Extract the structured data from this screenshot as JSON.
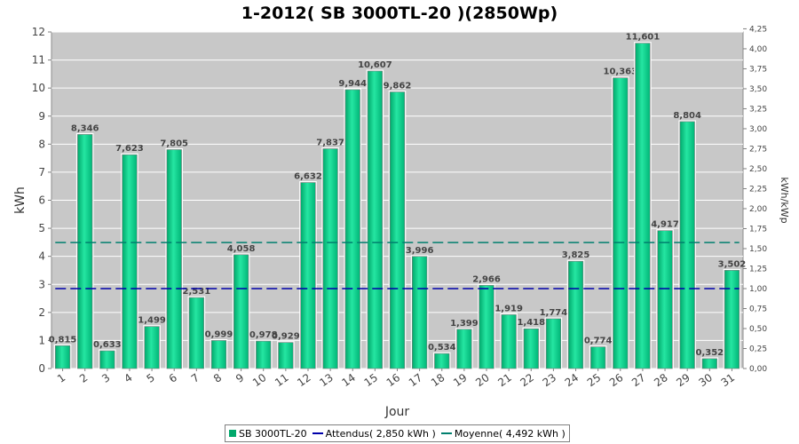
{
  "chart_data": {
    "type": "bar",
    "title": "1-2012( SB 3000TL-20 )(2850Wp)",
    "xlabel": "Jour",
    "ylabel": "kWh",
    "y2label": "kWh/kWp",
    "categories": [
      "1",
      "2",
      "3",
      "4",
      "5",
      "6",
      "7",
      "8",
      "9",
      "10",
      "11",
      "12",
      "13",
      "14",
      "15",
      "16",
      "17",
      "18",
      "19",
      "20",
      "21",
      "22",
      "23",
      "24",
      "25",
      "26",
      "27",
      "28",
      "29",
      "30",
      "31"
    ],
    "series": [
      {
        "name": "SB 3000TL-20",
        "values": [
          0.815,
          8.346,
          0.633,
          7.623,
          1.499,
          7.805,
          2.531,
          0.999,
          4.058,
          0.978,
          0.929,
          6.632,
          7.837,
          9.944,
          10.607,
          9.862,
          3.996,
          0.534,
          1.399,
          2.966,
          1.919,
          1.418,
          1.774,
          3.825,
          0.774,
          10.363,
          11.601,
          4.917,
          8.804,
          0.352,
          3.502
        ],
        "labels": [
          "0,815",
          "8,346",
          "0,633",
          "7,623",
          "1,499",
          "7,805",
          "2,531",
          "0,999",
          "4,058",
          "0,978",
          "0,929",
          "6,632",
          "7,837",
          "9,944",
          "10,607",
          "9,862",
          "3,996",
          "0,534",
          "1,399",
          "2,966",
          "1,919",
          "1,418",
          "1,774",
          "3,825",
          "0,774",
          "10,363",
          "11,601",
          "4,917",
          "8,804",
          "0,352",
          "3,502"
        ],
        "color": "#00a86b"
      }
    ],
    "reference_lines": [
      {
        "name": "Attendus( 2,850 kWh )",
        "value": 2.85,
        "color": "#0000aa"
      },
      {
        "name": "Moyenne( 4,492 kWh )",
        "value": 4.492,
        "color": "#007f6e"
      }
    ],
    "ylim": [
      0,
      12
    ],
    "yticks": [
      "0",
      "1",
      "2",
      "3",
      "4",
      "5",
      "6",
      "7",
      "8",
      "9",
      "10",
      "11",
      "12"
    ],
    "y2lim": [
      0,
      4.2105
    ],
    "y2ticks": [
      "0,00",
      "0,25",
      "0,50",
      "0,75",
      "1,00",
      "1,25",
      "1,50",
      "1,75",
      "2,00",
      "2,25",
      "2,50",
      "2,75",
      "3,00",
      "3,25",
      "3,50",
      "3,75",
      "4,00",
      "4,25"
    ],
    "grid": true,
    "legend_position": "bottom",
    "plot_background": "#c8c8c8"
  }
}
